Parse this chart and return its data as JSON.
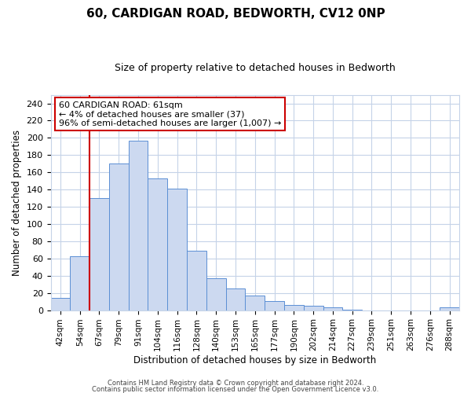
{
  "title": "60, CARDIGAN ROAD, BEDWORTH, CV12 0NP",
  "subtitle": "Size of property relative to detached houses in Bedworth",
  "xlabel": "Distribution of detached houses by size in Bedworth",
  "ylabel": "Number of detached properties",
  "bar_labels": [
    "42sqm",
    "54sqm",
    "67sqm",
    "79sqm",
    "91sqm",
    "104sqm",
    "116sqm",
    "128sqm",
    "140sqm",
    "153sqm",
    "165sqm",
    "177sqm",
    "190sqm",
    "202sqm",
    "214sqm",
    "227sqm",
    "239sqm",
    "251sqm",
    "263sqm",
    "276sqm",
    "288sqm"
  ],
  "bar_values": [
    14,
    63,
    130,
    170,
    197,
    153,
    141,
    69,
    37,
    25,
    17,
    11,
    6,
    5,
    3,
    1,
    0,
    0,
    0,
    0,
    3
  ],
  "bar_color": "#ccd9f0",
  "bar_edge_color": "#5b8fd4",
  "vline_pos": 1.5,
  "vline_color": "#cc0000",
  "annotation_title": "60 CARDIGAN ROAD: 61sqm",
  "annotation_line1": "← 4% of detached houses are smaller (37)",
  "annotation_line2": "96% of semi-detached houses are larger (1,007) →",
  "annotation_box_edge_color": "#cc0000",
  "ylim": [
    0,
    250
  ],
  "yticks": [
    0,
    20,
    40,
    60,
    80,
    100,
    120,
    140,
    160,
    180,
    200,
    220,
    240
  ],
  "footer1": "Contains HM Land Registry data © Crown copyright and database right 2024.",
  "footer2": "Contains public sector information licensed under the Open Government Licence v3.0.",
  "bg_color": "#ffffff",
  "grid_color": "#c5d3e8",
  "title_fontsize": 11,
  "subtitle_fontsize": 9,
  "ylabel_fontsize": 8.5,
  "xlabel_fontsize": 8.5,
  "tick_fontsize": 8,
  "xtick_fontsize": 7.5,
  "annotation_fontsize": 8,
  "footer_fontsize": 6
}
